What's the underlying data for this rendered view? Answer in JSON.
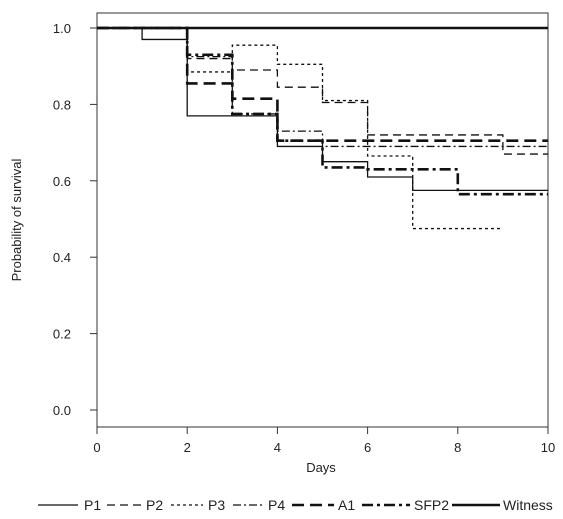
{
  "chart_data": {
    "type": "line",
    "subtype": "step",
    "title": "",
    "xlabel": "Days",
    "ylabel": "Probability of survival",
    "xlim": [
      0,
      10
    ],
    "ylim": [
      0,
      1
    ],
    "xticks": [
      "0",
      "2",
      "4",
      "6",
      "8",
      "10"
    ],
    "yticks": [
      "0.0",
      "0.2",
      "0.4",
      "0.6",
      "0.8",
      "1.0"
    ],
    "grid": false,
    "legend_position": "bottom",
    "series": [
      {
        "name": "P1",
        "style": "solid",
        "weight": "thin",
        "x": [
          0,
          1,
          2,
          3,
          4,
          5,
          6,
          7,
          10
        ],
        "y": [
          1.0,
          0.97,
          0.77,
          0.77,
          0.69,
          0.65,
          0.61,
          0.575,
          0.575
        ]
      },
      {
        "name": "P2",
        "style": "dashed",
        "weight": "thin",
        "x": [
          0,
          2,
          3,
          4,
          5,
          6,
          9,
          10
        ],
        "y": [
          1.0,
          0.92,
          0.89,
          0.845,
          0.805,
          0.72,
          0.67,
          0.67
        ]
      },
      {
        "name": "P3",
        "style": "dotted",
        "weight": "thin",
        "x": [
          0,
          2,
          3,
          4,
          5,
          6,
          7,
          9
        ],
        "y": [
          1.0,
          0.885,
          0.955,
          0.905,
          0.81,
          0.665,
          0.475,
          0.475
        ]
      },
      {
        "name": "P4",
        "style": "dashdot",
        "weight": "thin",
        "x": [
          0,
          2,
          3,
          4,
          5,
          10
        ],
        "y": [
          1.0,
          0.925,
          0.775,
          0.73,
          0.69,
          0.69
        ]
      },
      {
        "name": "A1",
        "style": "dashed",
        "weight": "thick",
        "x": [
          0,
          2,
          3,
          4,
          10
        ],
        "y": [
          1.0,
          0.855,
          0.815,
          0.705,
          0.705
        ]
      },
      {
        "name": "SFP2",
        "style": "dashdot",
        "weight": "thick",
        "x": [
          0,
          2,
          3,
          4,
          5,
          6,
          8,
          10
        ],
        "y": [
          1.0,
          0.93,
          0.775,
          0.705,
          0.635,
          0.63,
          0.565,
          0.565
        ]
      },
      {
        "name": "Witness",
        "style": "solid",
        "weight": "thick",
        "x": [
          0,
          10
        ],
        "y": [
          1.0,
          1.0
        ]
      }
    ]
  }
}
